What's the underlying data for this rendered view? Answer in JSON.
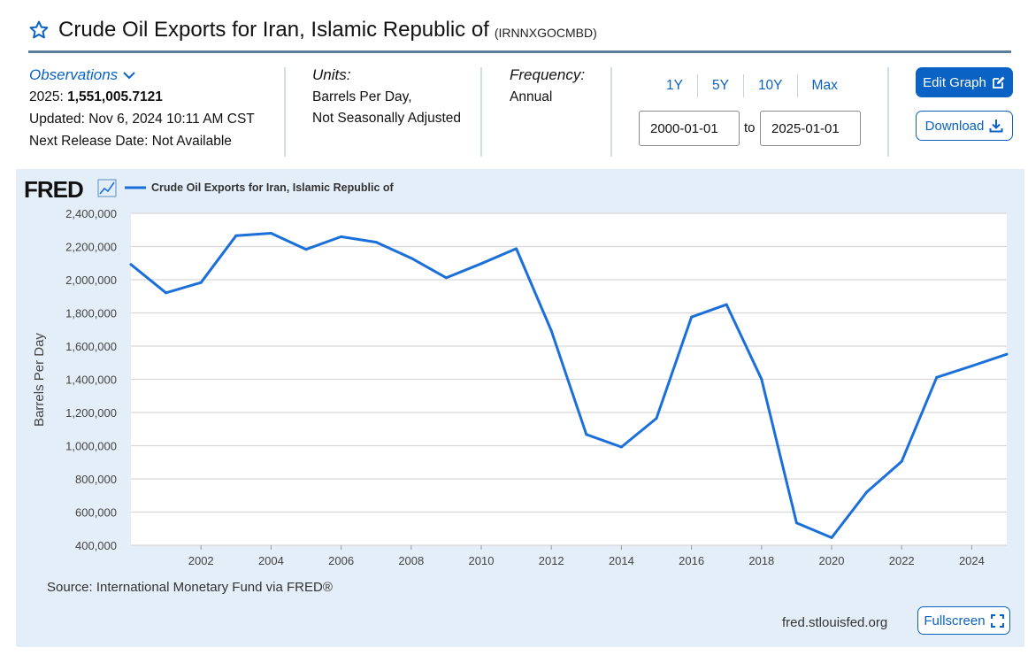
{
  "header": {
    "title": "Crude Oil Exports for Iran, Islamic Republic of",
    "series_id": "(IRNNXGOCMBD)"
  },
  "observations": {
    "label": "Observations",
    "latest_period": "2025:",
    "latest_value": "1,551,005.7121",
    "updated": "Updated: Nov 6, 2024 10:11 AM CST",
    "next_release": "Next Release Date: Not Available"
  },
  "units": {
    "label": "Units:",
    "line1": "Barrels Per Day,",
    "line2": "Not Seasonally Adjusted"
  },
  "frequency": {
    "label": "Frequency:",
    "value": "Annual"
  },
  "range": {
    "buttons": [
      "1Y",
      "5Y",
      "10Y",
      "Max"
    ],
    "start": "2000-01-01",
    "to_label": "to",
    "end": "2025-01-01"
  },
  "actions": {
    "edit_graph": "Edit Graph",
    "download": "Download",
    "fullscreen": "Fullscreen"
  },
  "footer": {
    "source": "Source: International Monetary Fund via FRED®",
    "site": "fred.stlouisfed.org"
  },
  "brand": {
    "logo": "FRED"
  },
  "colors": {
    "line": "#1a6fdb",
    "accent": "#0a62c4",
    "panel": "#e3eef8"
  },
  "chart_data": {
    "type": "line",
    "title": "",
    "legend": [
      "Crude Oil Exports for Iran, Islamic Republic of"
    ],
    "xlabel": "",
    "ylabel": "Barrels Per Day",
    "ylim": [
      400000,
      2400000
    ],
    "xlim": [
      2000,
      2025
    ],
    "yticks": [
      400000,
      600000,
      800000,
      1000000,
      1200000,
      1400000,
      1600000,
      1800000,
      2000000,
      2200000,
      2400000
    ],
    "ytick_labels": [
      "400,000",
      "600,000",
      "800,000",
      "1,000,000",
      "1,200,000",
      "1,400,000",
      "1,600,000",
      "1,800,000",
      "2,000,000",
      "2,200,000",
      "2,400,000"
    ],
    "xticks": [
      2002,
      2004,
      2006,
      2008,
      2010,
      2012,
      2014,
      2016,
      2018,
      2020,
      2022,
      2024
    ],
    "xtick_labels": [
      "2002",
      "2004",
      "2006",
      "2008",
      "2010",
      "2012",
      "2014",
      "2016",
      "2018",
      "2020",
      "2022",
      "2024"
    ],
    "series": [
      {
        "name": "Crude Oil Exports for Iran, Islamic Republic of",
        "x": [
          2000,
          2001,
          2002,
          2003,
          2004,
          2005,
          2006,
          2007,
          2008,
          2009,
          2010,
          2011,
          2012,
          2013,
          2014,
          2015,
          2016,
          2017,
          2018,
          2019,
          2020,
          2021,
          2022,
          2023,
          2024,
          2025
        ],
        "values": [
          2092000,
          1921000,
          1983000,
          2265000,
          2280000,
          2183000,
          2259000,
          2226000,
          2130000,
          2012000,
          2097000,
          2187000,
          1693000,
          1068000,
          992000,
          1165000,
          1775000,
          1850000,
          1401000,
          535000,
          446000,
          720000,
          905000,
          1412000,
          1480000,
          1551006
        ]
      }
    ]
  }
}
